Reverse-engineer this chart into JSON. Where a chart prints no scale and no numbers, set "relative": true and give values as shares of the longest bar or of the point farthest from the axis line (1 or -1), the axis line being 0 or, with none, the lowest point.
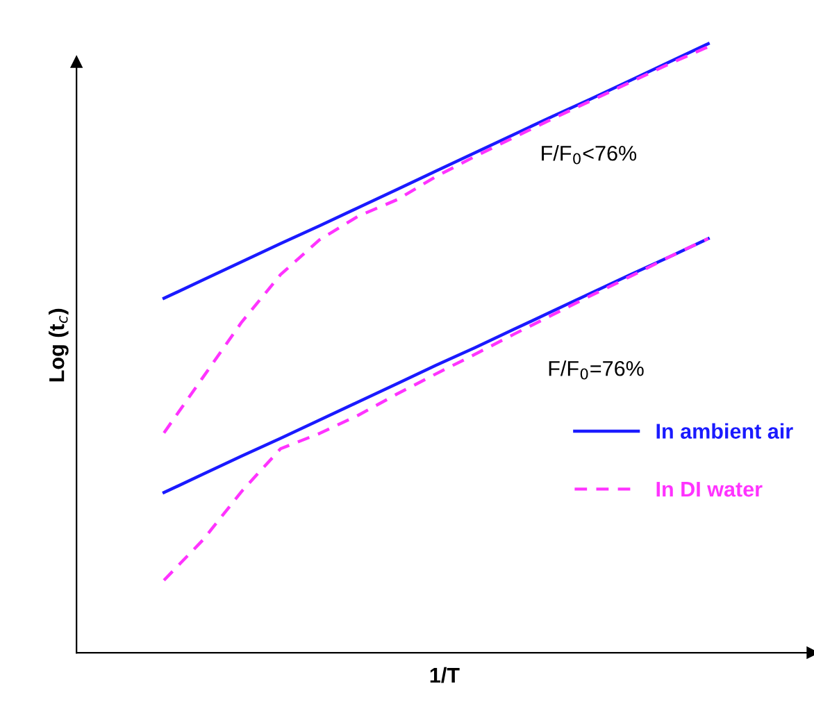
{
  "chart_data": {
    "type": "line",
    "relative": true,
    "xlabel": "1/T",
    "ylabel": "Log (t$_{c}$)",
    "annotations": [
      "F/F$_{0}$<76%",
      "F/F$_{0}$=76%"
    ],
    "legend": "right",
    "categories": [
      null,
      null,
      null,
      null,
      null,
      null,
      null,
      null,
      null,
      null,
      null,
      null,
      null,
      null,
      null
    ],
    "series": [
      {
        "name": "In ambient air",
        "color": "#1a1aff",
        "line_style": "solid",
        "values": [
          0.582,
          0.612,
          0.642,
          0.672,
          0.701,
          0.731,
          0.761,
          0.791,
          0.821,
          0.851,
          0.881,
          0.91,
          0.94,
          0.97,
          1.0
        ]
      },
      {
        "name": "In DI water",
        "color": "#ff33ff",
        "line_style": "dashed",
        "values": [
          0.361,
          0.452,
          0.543,
          0.621,
          0.678,
          0.717,
          0.744,
          0.782,
          0.815,
          0.846,
          0.877,
          0.907,
          0.937,
          0.967,
          0.995
        ]
      },
      {
        "color": "#1a1aff",
        "line_style": "solid",
        "values": [
          0.263,
          0.293,
          0.323,
          0.352,
          0.382,
          0.412,
          0.442,
          0.472,
          0.501,
          0.531,
          0.561,
          0.591,
          0.621,
          0.65,
          0.68
        ]
      },
      {
        "color": "#ff33ff",
        "line_style": "dashed",
        "values": [
          0.119,
          0.185,
          0.265,
          0.335,
          0.36,
          0.39,
          0.425,
          0.458,
          0.49,
          0.523,
          0.555,
          0.587,
          0.618,
          0.65,
          0.68
        ]
      }
    ]
  }
}
